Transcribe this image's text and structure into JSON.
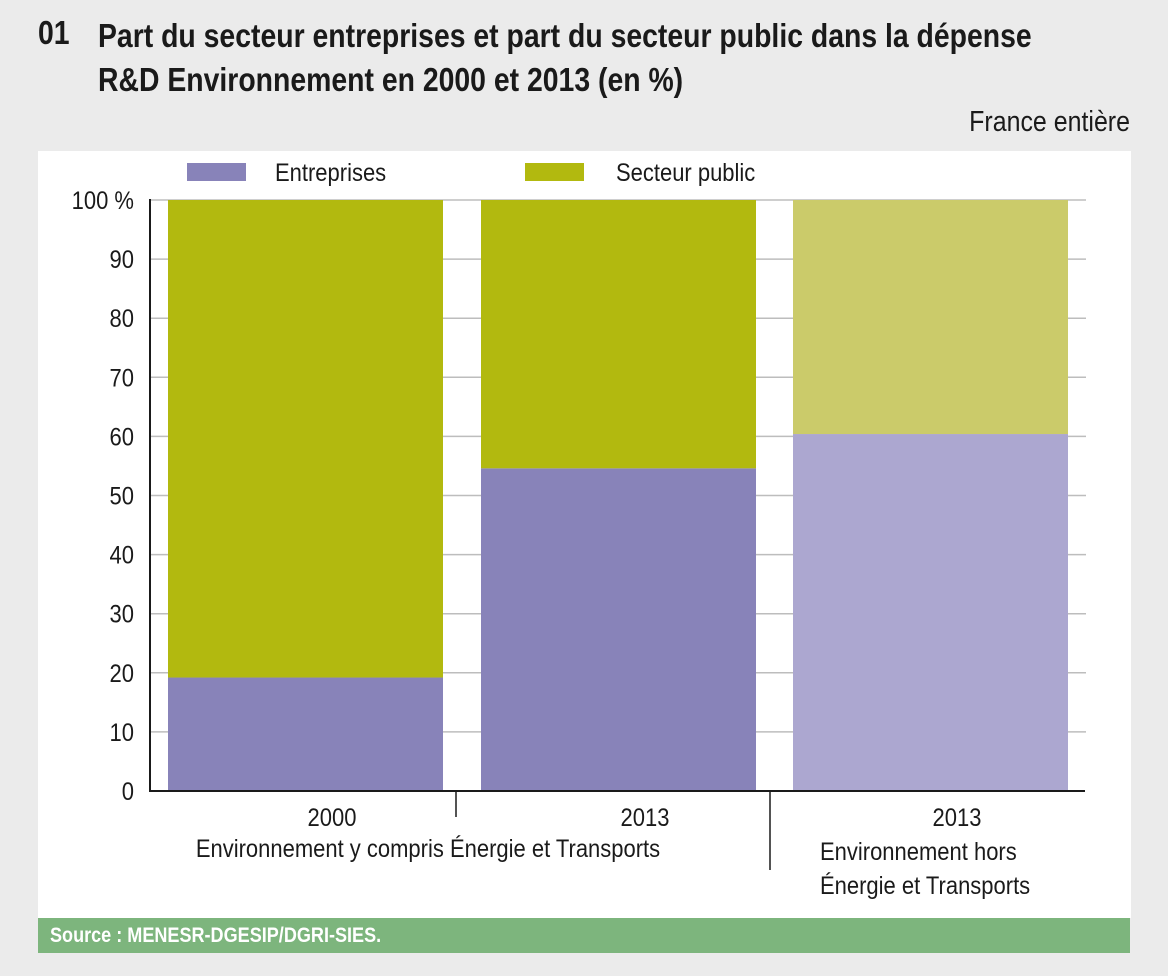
{
  "figure": {
    "number": "01",
    "title_line1": "Part du secteur entreprises et part du secteur public dans la dépense",
    "title_line2": "R&D Environnement en 2000 et 2013 (en %)",
    "scope": "France entière",
    "source": "Source : MENESR-DGESIP/DGRI-SIES."
  },
  "chart_data": {
    "type": "bar",
    "stacked": true,
    "title": "Part du secteur entreprises et part du secteur public dans la dépense R&D Environnement en 2000 et 2013 (en %)",
    "categories": [
      "2000",
      "2013",
      "2013"
    ],
    "groups": [
      {
        "label": "Environnement y compris Énergie et Transports",
        "categories": [
          "2000",
          "2013"
        ]
      },
      {
        "label_line1": "Environnement hors",
        "label_line2": "Énergie et Transports",
        "categories": [
          "2013"
        ]
      }
    ],
    "series": [
      {
        "name": "Entreprises",
        "values": [
          19.2,
          54.6,
          60.4
        ],
        "colors": [
          "#8883b9",
          "#8883b9",
          "#aca7d0"
        ]
      },
      {
        "name": "Secteur public",
        "values": [
          80.8,
          45.4,
          39.6
        ],
        "colors": [
          "#b2b90f",
          "#b2b90f",
          "#cbcb6a"
        ]
      }
    ],
    "legend_colors": [
      "#8883b9",
      "#b2b90f"
    ],
    "yticks": [
      "0",
      "10",
      "20",
      "30",
      "40",
      "50",
      "60",
      "70",
      "80",
      "90",
      "100 %"
    ],
    "ylim": [
      0,
      100
    ],
    "xlabel": "",
    "ylabel": "",
    "grid": true,
    "legend_position": "top"
  }
}
